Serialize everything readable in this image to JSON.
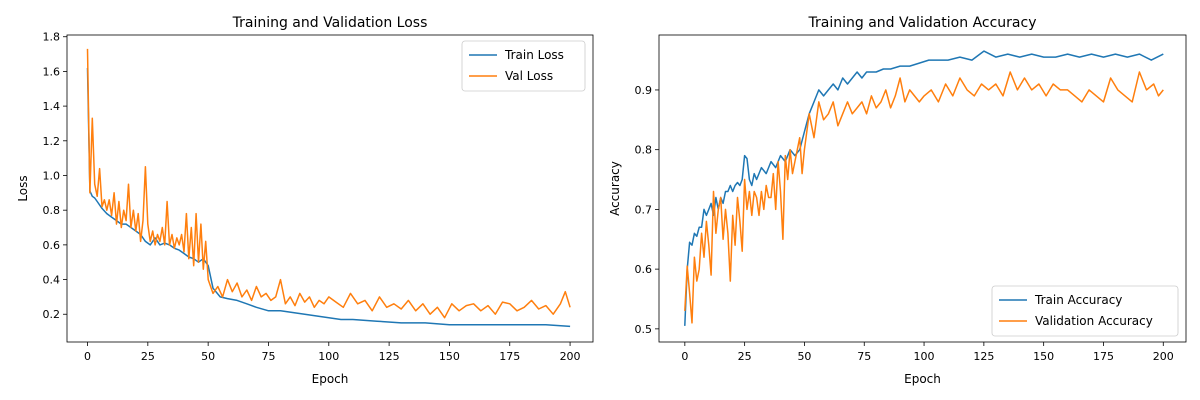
{
  "chart_data": [
    {
      "type": "line",
      "title": "Training and Validation Loss",
      "xlabel": "Epoch",
      "ylabel": "Loss",
      "xlim": [
        -8.5,
        209.5
      ],
      "ylim": [
        0.04,
        1.81
      ],
      "xticks": [
        0,
        25,
        50,
        75,
        100,
        125,
        150,
        175,
        200
      ],
      "yticks": [
        0.2,
        0.4,
        0.6,
        0.8,
        1.0,
        1.2,
        1.4,
        1.6,
        1.8
      ],
      "ytick_decimals": 1,
      "legend": "top-right",
      "grid": false,
      "series": [
        {
          "name": "Train Loss",
          "color": "#1f77b4",
          "x": [
            0,
            1,
            2,
            3,
            4,
            6,
            8,
            10,
            12,
            14,
            16,
            18,
            20,
            22,
            24,
            26,
            28,
            30,
            32,
            34,
            36,
            38,
            40,
            42,
            44,
            46,
            48,
            50,
            52,
            55,
            58,
            62,
            66,
            70,
            75,
            80,
            85,
            90,
            95,
            100,
            105,
            110,
            120,
            130,
            140,
            150,
            160,
            170,
            180,
            190,
            200
          ],
          "values": [
            1.62,
            0.91,
            0.88,
            0.87,
            0.85,
            0.81,
            0.78,
            0.76,
            0.74,
            0.72,
            0.72,
            0.7,
            0.68,
            0.66,
            0.62,
            0.6,
            0.64,
            0.6,
            0.61,
            0.6,
            0.58,
            0.57,
            0.55,
            0.53,
            0.52,
            0.5,
            0.52,
            0.48,
            0.35,
            0.3,
            0.29,
            0.28,
            0.26,
            0.24,
            0.22,
            0.22,
            0.21,
            0.2,
            0.19,
            0.18,
            0.17,
            0.17,
            0.16,
            0.15,
            0.15,
            0.14,
            0.14,
            0.14,
            0.14,
            0.14,
            0.13
          ]
        },
        {
          "name": "Val Loss",
          "color": "#ff7f0e",
          "x": [
            0,
            1,
            2,
            3,
            4,
            5,
            6,
            7,
            8,
            9,
            10,
            11,
            12,
            13,
            14,
            15,
            16,
            17,
            18,
            19,
            20,
            21,
            22,
            23,
            24,
            25,
            26,
            27,
            28,
            29,
            30,
            31,
            32,
            33,
            34,
            35,
            36,
            37,
            38,
            39,
            40,
            41,
            42,
            43,
            44,
            45,
            46,
            47,
            48,
            49,
            50,
            52,
            54,
            56,
            58,
            60,
            62,
            64,
            66,
            68,
            70,
            72,
            74,
            76,
            78,
            80,
            82,
            84,
            86,
            88,
            90,
            92,
            94,
            96,
            98,
            100,
            103,
            106,
            109,
            112,
            115,
            118,
            121,
            124,
            127,
            130,
            133,
            136,
            139,
            142,
            145,
            148,
            151,
            154,
            157,
            160,
            163,
            166,
            169,
            172,
            175,
            178,
            181,
            184,
            187,
            190,
            193,
            196,
            198,
            200
          ],
          "values": [
            1.73,
            0.9,
            1.33,
            0.95,
            0.88,
            1.04,
            0.82,
            0.86,
            0.8,
            0.86,
            0.77,
            0.9,
            0.72,
            0.85,
            0.7,
            0.8,
            0.74,
            0.95,
            0.7,
            0.8,
            0.68,
            0.78,
            0.62,
            0.74,
            1.05,
            0.72,
            0.62,
            0.68,
            0.6,
            0.66,
            0.62,
            0.7,
            0.6,
            0.85,
            0.6,
            0.66,
            0.58,
            0.64,
            0.6,
            0.66,
            0.56,
            0.78,
            0.52,
            0.7,
            0.48,
            0.78,
            0.5,
            0.72,
            0.46,
            0.62,
            0.4,
            0.32,
            0.36,
            0.3,
            0.4,
            0.33,
            0.38,
            0.3,
            0.34,
            0.28,
            0.36,
            0.3,
            0.32,
            0.28,
            0.3,
            0.4,
            0.26,
            0.3,
            0.25,
            0.32,
            0.27,
            0.3,
            0.24,
            0.28,
            0.26,
            0.3,
            0.27,
            0.24,
            0.32,
            0.26,
            0.28,
            0.22,
            0.3,
            0.24,
            0.26,
            0.23,
            0.28,
            0.22,
            0.26,
            0.2,
            0.24,
            0.18,
            0.26,
            0.22,
            0.25,
            0.26,
            0.22,
            0.25,
            0.2,
            0.27,
            0.26,
            0.22,
            0.24,
            0.28,
            0.23,
            0.25,
            0.2,
            0.26,
            0.33,
            0.24
          ]
        }
      ]
    },
    {
      "type": "line",
      "title": "Training and Validation Accuracy",
      "xlabel": "Epoch",
      "ylabel": "Accuracy",
      "xlim": [
        -10.8,
        209.5
      ],
      "ylim": [
        0.478,
        0.992
      ],
      "xticks": [
        0,
        25,
        50,
        75,
        100,
        125,
        150,
        175,
        200
      ],
      "yticks": [
        0.5,
        0.6,
        0.7,
        0.8,
        0.9
      ],
      "ytick_decimals": 1,
      "legend": "bottom-right",
      "grid": false,
      "series": [
        {
          "name": "Train Accuracy",
          "color": "#1f77b4",
          "x": [
            0,
            1,
            2,
            3,
            4,
            5,
            6,
            7,
            8,
            9,
            10,
            11,
            12,
            13,
            14,
            15,
            16,
            17,
            18,
            19,
            20,
            21,
            22,
            23,
            24,
            25,
            26,
            27,
            28,
            29,
            30,
            32,
            34,
            36,
            38,
            40,
            42,
            44,
            46,
            48,
            50,
            52,
            54,
            56,
            58,
            60,
            62,
            64,
            66,
            68,
            70,
            72,
            74,
            76,
            78,
            80,
            83,
            86,
            90,
            94,
            98,
            102,
            106,
            110,
            115,
            120,
            125,
            130,
            135,
            140,
            145,
            150,
            155,
            160,
            165,
            170,
            175,
            180,
            185,
            190,
            195,
            200
          ],
          "values": [
            0.505,
            0.6,
            0.645,
            0.64,
            0.66,
            0.655,
            0.67,
            0.67,
            0.7,
            0.69,
            0.7,
            0.71,
            0.69,
            0.72,
            0.7,
            0.72,
            0.71,
            0.73,
            0.73,
            0.74,
            0.73,
            0.74,
            0.745,
            0.74,
            0.75,
            0.79,
            0.785,
            0.75,
            0.74,
            0.76,
            0.75,
            0.77,
            0.76,
            0.78,
            0.77,
            0.79,
            0.78,
            0.8,
            0.79,
            0.8,
            0.83,
            0.86,
            0.88,
            0.9,
            0.89,
            0.9,
            0.91,
            0.9,
            0.92,
            0.91,
            0.92,
            0.93,
            0.92,
            0.93,
            0.93,
            0.93,
            0.935,
            0.935,
            0.94,
            0.94,
            0.945,
            0.95,
            0.95,
            0.95,
            0.955,
            0.95,
            0.965,
            0.955,
            0.96,
            0.955,
            0.96,
            0.955,
            0.955,
            0.96,
            0.955,
            0.96,
            0.955,
            0.96,
            0.955,
            0.96,
            0.95,
            0.96
          ]
        },
        {
          "name": "Validation Accuracy",
          "color": "#ff7f0e",
          "x": [
            0,
            1,
            2,
            3,
            4,
            5,
            6,
            7,
            8,
            9,
            10,
            11,
            12,
            13,
            14,
            15,
            16,
            17,
            18,
            19,
            20,
            21,
            22,
            23,
            24,
            25,
            26,
            27,
            28,
            29,
            30,
            31,
            32,
            33,
            34,
            35,
            36,
            37,
            38,
            39,
            40,
            41,
            42,
            43,
            44,
            45,
            46,
            47,
            48,
            49,
            50,
            52,
            54,
            56,
            58,
            60,
            62,
            64,
            66,
            68,
            70,
            72,
            74,
            76,
            78,
            80,
            82,
            84,
            86,
            88,
            90,
            92,
            94,
            96,
            98,
            100,
            103,
            106,
            109,
            112,
            115,
            118,
            121,
            124,
            127,
            130,
            133,
            136,
            139,
            142,
            145,
            148,
            151,
            154,
            157,
            160,
            163,
            166,
            169,
            172,
            175,
            178,
            181,
            184,
            187,
            190,
            193,
            196,
            198,
            200
          ],
          "values": [
            0.53,
            0.605,
            0.56,
            0.51,
            0.62,
            0.58,
            0.6,
            0.66,
            0.62,
            0.68,
            0.64,
            0.59,
            0.73,
            0.66,
            0.7,
            0.72,
            0.65,
            0.7,
            0.66,
            0.58,
            0.69,
            0.64,
            0.72,
            0.68,
            0.63,
            0.75,
            0.7,
            0.73,
            0.69,
            0.73,
            0.72,
            0.69,
            0.73,
            0.7,
            0.74,
            0.72,
            0.72,
            0.76,
            0.7,
            0.78,
            0.73,
            0.65,
            0.79,
            0.75,
            0.8,
            0.76,
            0.78,
            0.8,
            0.82,
            0.76,
            0.8,
            0.86,
            0.82,
            0.88,
            0.85,
            0.86,
            0.88,
            0.84,
            0.86,
            0.88,
            0.86,
            0.87,
            0.88,
            0.86,
            0.89,
            0.87,
            0.88,
            0.9,
            0.87,
            0.89,
            0.92,
            0.88,
            0.9,
            0.89,
            0.88,
            0.89,
            0.9,
            0.88,
            0.91,
            0.89,
            0.92,
            0.9,
            0.89,
            0.91,
            0.9,
            0.91,
            0.89,
            0.93,
            0.9,
            0.92,
            0.9,
            0.91,
            0.89,
            0.91,
            0.9,
            0.9,
            0.89,
            0.88,
            0.9,
            0.89,
            0.88,
            0.92,
            0.9,
            0.89,
            0.88,
            0.93,
            0.9,
            0.91,
            0.89,
            0.9
          ]
        }
      ]
    }
  ]
}
